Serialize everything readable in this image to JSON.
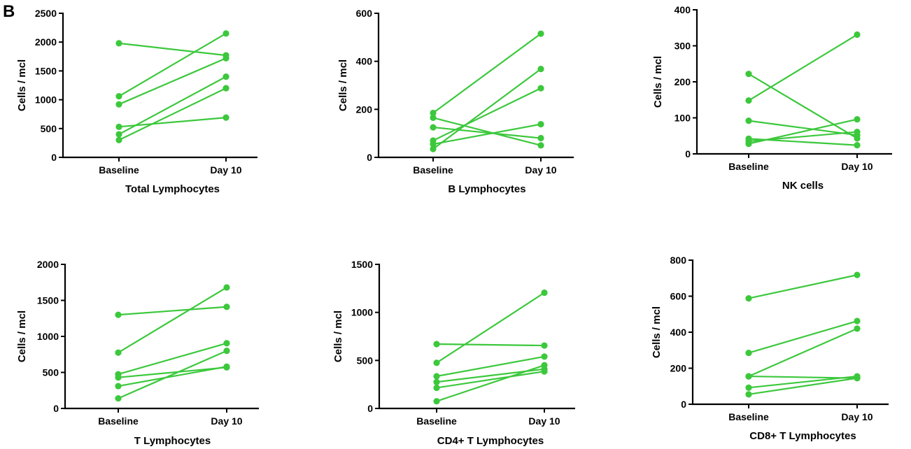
{
  "panel_letter": "B",
  "colors": {
    "series": "#3cc83c",
    "axis": "#000000"
  },
  "chart_data": [
    {
      "type": "line",
      "title": "Total Lymphocytes",
      "ylabel": "Cells / mcl",
      "categories": [
        "Baseline",
        "Day 10"
      ],
      "ylim": [
        0,
        2500
      ],
      "yticks": [
        0,
        500,
        1000,
        1500,
        2000,
        2500
      ],
      "series": [
        {
          "values": [
            1980,
            1770
          ]
        },
        {
          "values": [
            1060,
            2150
          ]
        },
        {
          "values": [
            920,
            1720
          ]
        },
        {
          "values": [
            530,
            690
          ]
        },
        {
          "values": [
            400,
            1400
          ]
        },
        {
          "values": [
            300,
            1200
          ]
        }
      ]
    },
    {
      "type": "line",
      "title": "B Lymphocytes",
      "ylabel": "Cells / mcl",
      "categories": [
        "Baseline",
        "Day 10"
      ],
      "ylim": [
        0,
        600
      ],
      "yticks": [
        0,
        200,
        400,
        600
      ],
      "series": [
        {
          "values": [
            185,
            515
          ]
        },
        {
          "values": [
            165,
            50
          ]
        },
        {
          "values": [
            125,
            80
          ]
        },
        {
          "values": [
            70,
            288
          ]
        },
        {
          "values": [
            55,
            138
          ]
        },
        {
          "values": [
            35,
            368
          ]
        }
      ]
    },
    {
      "type": "line",
      "title": "NK cells",
      "ylabel": "Cells / mcl",
      "categories": [
        "Baseline",
        "Day 10"
      ],
      "ylim": [
        0,
        400
      ],
      "yticks": [
        0,
        100,
        200,
        300,
        400
      ],
      "series": [
        {
          "values": [
            222,
            43
          ]
        },
        {
          "values": [
            148,
            331
          ]
        },
        {
          "values": [
            92,
            52
          ]
        },
        {
          "values": [
            42,
            24
          ]
        },
        {
          "values": [
            35,
            61
          ]
        },
        {
          "values": [
            28,
            96
          ]
        }
      ]
    },
    {
      "type": "line",
      "title": "T Lymphocytes",
      "ylabel": "Cells / mcl",
      "categories": [
        "Baseline",
        "Day 10"
      ],
      "ylim": [
        0,
        2000
      ],
      "yticks": [
        0,
        500,
        1000,
        1500,
        2000
      ],
      "series": [
        {
          "values": [
            1300,
            1410
          ]
        },
        {
          "values": [
            775,
            1680
          ]
        },
        {
          "values": [
            475,
            905
          ]
        },
        {
          "values": [
            430,
            570
          ]
        },
        {
          "values": [
            310,
            580
          ]
        },
        {
          "values": [
            140,
            800
          ]
        }
      ]
    },
    {
      "type": "line",
      "title": "CD4+ T Lymphocytes",
      "ylabel": "Cells / mcl",
      "categories": [
        "Baseline",
        "Day 10"
      ],
      "ylim": [
        0,
        1500
      ],
      "yticks": [
        0,
        500,
        1000,
        1500
      ],
      "series": [
        {
          "values": [
            670,
            655
          ]
        },
        {
          "values": [
            475,
            1205
          ]
        },
        {
          "values": [
            335,
            540
          ]
        },
        {
          "values": [
            275,
            410
          ]
        },
        {
          "values": [
            215,
            385
          ]
        },
        {
          "values": [
            75,
            450
          ]
        }
      ]
    },
    {
      "type": "line",
      "title": "CD8+ T Lymphocytes",
      "ylabel": "Cells / mcl",
      "categories": [
        "Baseline",
        "Day 10"
      ],
      "ylim": [
        0,
        800
      ],
      "yticks": [
        0,
        200,
        400,
        600,
        800
      ],
      "series": [
        {
          "values": [
            588,
            718
          ]
        },
        {
          "values": [
            285,
            462
          ]
        },
        {
          "values": [
            155,
            420
          ]
        },
        {
          "values": [
            155,
            145
          ]
        },
        {
          "values": [
            92,
            155
          ]
        },
        {
          "values": [
            55,
            145
          ]
        }
      ]
    }
  ]
}
